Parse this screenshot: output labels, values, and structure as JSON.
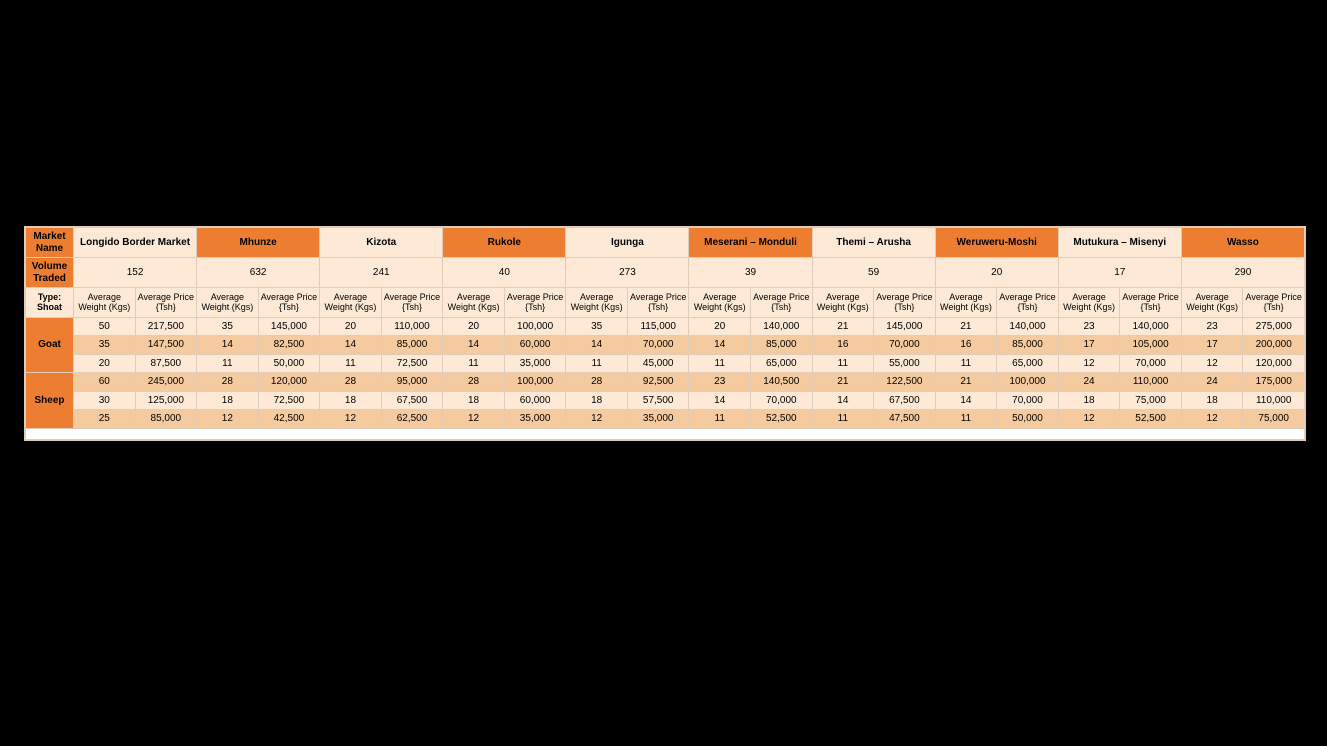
{
  "labels": {
    "market_name": "Market Name",
    "volume_traded": "Volume Traded",
    "type_shoat": "Type: Shoat",
    "avg_weight": "Average Weight (Kgs)",
    "avg_price": "Average Price {Tsh}",
    "goat": "Goat",
    "sheep": "Sheep"
  },
  "markets": [
    {
      "name": "Longido Border Market",
      "volume": "152"
    },
    {
      "name": "Mhunze",
      "volume": "632"
    },
    {
      "name": "Kizota",
      "volume": "241"
    },
    {
      "name": "Rukole",
      "volume": "40"
    },
    {
      "name": "Igunga",
      "volume": "273"
    },
    {
      "name": "Meserani – Monduli",
      "volume": "39"
    },
    {
      "name": "Themi – Arusha",
      "volume": "59"
    },
    {
      "name": "Weruweru-Moshi",
      "volume": "20"
    },
    {
      "name": "Mutukura – Misenyi",
      "volume": "17"
    },
    {
      "name": "Wasso",
      "volume": "290"
    }
  ],
  "rows": [
    {
      "type": "Goat",
      "row": 0,
      "shade": "light",
      "cells": [
        [
          "50",
          "217,500"
        ],
        [
          "35",
          "145,000"
        ],
        [
          "20",
          "110,000"
        ],
        [
          "20",
          "100,000"
        ],
        [
          "35",
          "115,000"
        ],
        [
          "20",
          "140,000"
        ],
        [
          "21",
          "145,000"
        ],
        [
          "21",
          "140,000"
        ],
        [
          "23",
          "140,000"
        ],
        [
          "23",
          "275,000"
        ]
      ]
    },
    {
      "type": "Goat",
      "row": 1,
      "shade": "dark",
      "cells": [
        [
          "35",
          "147,500"
        ],
        [
          "14",
          "82,500"
        ],
        [
          "14",
          "85,000"
        ],
        [
          "14",
          "60,000"
        ],
        [
          "14",
          "70,000"
        ],
        [
          "14",
          "85,000"
        ],
        [
          "16",
          "70,000"
        ],
        [
          "16",
          "85,000"
        ],
        [
          "17",
          "105,000"
        ],
        [
          "17",
          "200,000"
        ]
      ]
    },
    {
      "type": "Goat",
      "row": 2,
      "shade": "light",
      "cells": [
        [
          "20",
          "87,500"
        ],
        [
          "11",
          "50,000"
        ],
        [
          "11",
          "72,500"
        ],
        [
          "11",
          "35,000"
        ],
        [
          "11",
          "45,000"
        ],
        [
          "11",
          "65,000"
        ],
        [
          "11",
          "55,000"
        ],
        [
          "11",
          "65,000"
        ],
        [
          "12",
          "70,000"
        ],
        [
          "12",
          "120,000"
        ]
      ]
    },
    {
      "type": "Sheep",
      "row": 0,
      "shade": "dark",
      "cells": [
        [
          "60",
          "245,000"
        ],
        [
          "28",
          "120,000"
        ],
        [
          "28",
          "95,000"
        ],
        [
          "28",
          "100,000"
        ],
        [
          "28",
          "92,500"
        ],
        [
          "23",
          "140,500"
        ],
        [
          "21",
          "122,500"
        ],
        [
          "21",
          "100,000"
        ],
        [
          "24",
          "110,000"
        ],
        [
          "24",
          "175,000"
        ]
      ]
    },
    {
      "type": "Sheep",
      "row": 1,
      "shade": "light",
      "cells": [
        [
          "30",
          "125,000"
        ],
        [
          "18",
          "72,500"
        ],
        [
          "18",
          "67,500"
        ],
        [
          "18",
          "60,000"
        ],
        [
          "18",
          "57,500"
        ],
        [
          "14",
          "70,000"
        ],
        [
          "14",
          "67,500"
        ],
        [
          "14",
          "70,000"
        ],
        [
          "18",
          "75,000"
        ],
        [
          "18",
          "110,000"
        ]
      ]
    },
    {
      "type": "Sheep",
      "row": 2,
      "shade": "dark",
      "cells": [
        [
          "25",
          "85,000"
        ],
        [
          "12",
          "42,500"
        ],
        [
          "12",
          "62,500"
        ],
        [
          "12",
          "35,000"
        ],
        [
          "12",
          "35,000"
        ],
        [
          "11",
          "52,500"
        ],
        [
          "11",
          "47,500"
        ],
        [
          "11",
          "50,000"
        ],
        [
          "12",
          "52,500"
        ],
        [
          "12",
          "75,000"
        ]
      ]
    }
  ],
  "colors": {
    "page_bg": "#000000",
    "header_dark": "#ed7d31",
    "cell_light": "#fde9d6",
    "cell_dark": "#f5ca9e",
    "border": "#e0cdb9"
  }
}
